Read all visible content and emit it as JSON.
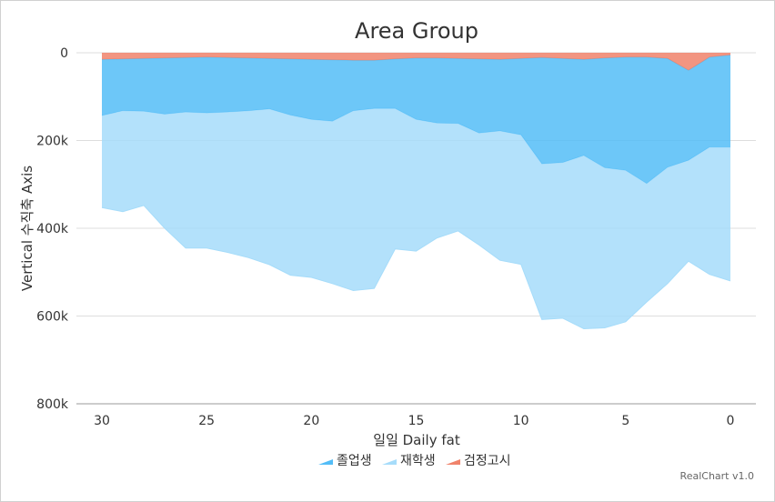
{
  "chart_data": {
    "type": "area",
    "stacked": true,
    "title": "Area Group",
    "xlabel": "일일 Daily fat",
    "ylabel": "Vertical 수직축 Axis",
    "x": [
      30,
      29,
      28,
      27,
      26,
      25,
      24,
      23,
      22,
      21,
      20,
      19,
      18,
      17,
      16,
      15,
      14,
      13,
      12,
      11,
      10,
      9,
      8,
      7,
      6,
      5,
      4,
      3,
      2,
      1,
      0
    ],
    "x_ticks": [
      "30",
      "25",
      "20",
      "15",
      "10",
      "5",
      "0"
    ],
    "x_tick_values": [
      30,
      25,
      20,
      15,
      10,
      5,
      0
    ],
    "xlim": [
      30,
      0
    ],
    "y_ticks": [
      "0",
      "200k",
      "400k",
      "600k",
      "800k"
    ],
    "y_tick_values": [
      0,
      200000,
      400000,
      600000,
      800000
    ],
    "ylim": [
      0,
      800000
    ],
    "y_reversed": true,
    "grid": true,
    "legend_position": "bottom",
    "series": [
      {
        "name": "검정고시",
        "color": "#f0836b",
        "values": [
          15000,
          14000,
          13000,
          12000,
          11000,
          10000,
          11000,
          12000,
          13000,
          14000,
          15000,
          16000,
          17000,
          17000,
          14000,
          12000,
          12000,
          13000,
          14000,
          15000,
          13000,
          11000,
          13000,
          15000,
          12000,
          10000,
          10000,
          13000,
          40000,
          10000,
          5000
        ]
      },
      {
        "name": "졸업생",
        "color": "#53bdf7",
        "values": [
          128000,
          118000,
          120000,
          128000,
          124000,
          127000,
          124000,
          120000,
          115000,
          128000,
          137000,
          140000,
          115000,
          110000,
          113000,
          140000,
          148000,
          148000,
          169000,
          163000,
          174000,
          242000,
          237000,
          219000,
          250000,
          258000,
          288000,
          248000,
          205000,
          205000,
          210000
        ]
      },
      {
        "name": "재학생",
        "color": "#a6dcfa",
        "values": [
          210000,
          230000,
          215000,
          260000,
          310000,
          308000,
          320000,
          335000,
          355000,
          365000,
          360000,
          370000,
          410000,
          410000,
          320000,
          300000,
          262000,
          245000,
          255000,
          295000,
          295000,
          355000,
          355000,
          395000,
          365000,
          345000,
          270000,
          265000,
          230000,
          290000,
          305000
        ]
      }
    ],
    "credit": "RealChart v1.0"
  }
}
